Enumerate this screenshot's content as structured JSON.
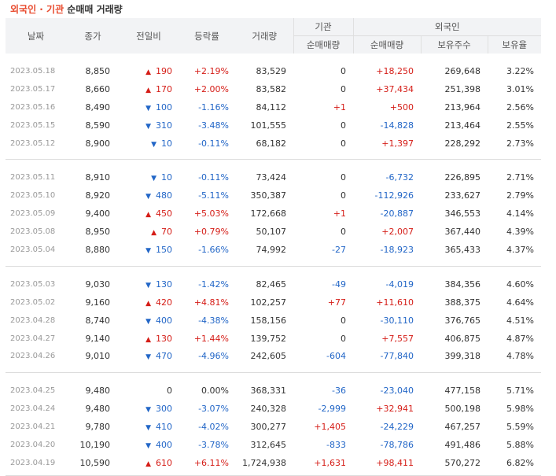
{
  "title": {
    "part1": "외국인 · 기관",
    "part2": " 순매매 거래량"
  },
  "headers": {
    "date": "날짜",
    "close": "종가",
    "change": "전일비",
    "rate": "등락률",
    "volume": "거래량",
    "inst": "기관",
    "foreign": "외국인",
    "inst_net": "순매매량",
    "foreign_net": "순매매량",
    "holdings": "보유주수",
    "ratio": "보유율"
  },
  "colors": {
    "up": "#d51d17",
    "down": "#2266c7",
    "title_accent": "#e8492c",
    "header_bg": "#f2f3f5"
  },
  "groups": [
    {
      "rows": [
        {
          "date": "2023.05.18",
          "close": "8,850",
          "dir": "up",
          "chg": "190",
          "rate": "+2.19%",
          "vol": "83,529",
          "inst": "0",
          "inst_dir": "zero",
          "fnet": "+18,250",
          "fdir": "up",
          "hold": "269,648",
          "ratio": "3.22%"
        },
        {
          "date": "2023.05.17",
          "close": "8,660",
          "dir": "up",
          "chg": "170",
          "rate": "+2.00%",
          "vol": "83,582",
          "inst": "0",
          "inst_dir": "zero",
          "fnet": "+37,434",
          "fdir": "up",
          "hold": "251,398",
          "ratio": "3.01%"
        },
        {
          "date": "2023.05.16",
          "close": "8,490",
          "dir": "down",
          "chg": "100",
          "rate": "-1.16%",
          "vol": "84,112",
          "inst": "+1",
          "inst_dir": "up",
          "fnet": "+500",
          "fdir": "up",
          "hold": "213,964",
          "ratio": "2.56%"
        },
        {
          "date": "2023.05.15",
          "close": "8,590",
          "dir": "down",
          "chg": "310",
          "rate": "-3.48%",
          "vol": "101,555",
          "inst": "0",
          "inst_dir": "zero",
          "fnet": "-14,828",
          "fdir": "down",
          "hold": "213,464",
          "ratio": "2.55%"
        },
        {
          "date": "2023.05.12",
          "close": "8,900",
          "dir": "down",
          "chg": "10",
          "rate": "-0.11%",
          "vol": "68,182",
          "inst": "0",
          "inst_dir": "zero",
          "fnet": "+1,397",
          "fdir": "up",
          "hold": "228,292",
          "ratio": "2.73%"
        }
      ]
    },
    {
      "rows": [
        {
          "date": "2023.05.11",
          "close": "8,910",
          "dir": "down",
          "chg": "10",
          "rate": "-0.11%",
          "vol": "73,424",
          "inst": "0",
          "inst_dir": "zero",
          "fnet": "-6,732",
          "fdir": "down",
          "hold": "226,895",
          "ratio": "2.71%"
        },
        {
          "date": "2023.05.10",
          "close": "8,920",
          "dir": "down",
          "chg": "480",
          "rate": "-5.11%",
          "vol": "350,387",
          "inst": "0",
          "inst_dir": "zero",
          "fnet": "-112,926",
          "fdir": "down",
          "hold": "233,627",
          "ratio": "2.79%"
        },
        {
          "date": "2023.05.09",
          "close": "9,400",
          "dir": "up",
          "chg": "450",
          "rate": "+5.03%",
          "vol": "172,668",
          "inst": "+1",
          "inst_dir": "up",
          "fnet": "-20,887",
          "fdir": "down",
          "hold": "346,553",
          "ratio": "4.14%"
        },
        {
          "date": "2023.05.08",
          "close": "8,950",
          "dir": "up",
          "chg": "70",
          "rate": "+0.79%",
          "vol": "50,107",
          "inst": "0",
          "inst_dir": "zero",
          "fnet": "+2,007",
          "fdir": "up",
          "hold": "367,440",
          "ratio": "4.39%"
        },
        {
          "date": "2023.05.04",
          "close": "8,880",
          "dir": "down",
          "chg": "150",
          "rate": "-1.66%",
          "vol": "74,992",
          "inst": "-27",
          "inst_dir": "down",
          "fnet": "-18,923",
          "fdir": "down",
          "hold": "365,433",
          "ratio": "4.37%"
        }
      ]
    },
    {
      "rows": [
        {
          "date": "2023.05.03",
          "close": "9,030",
          "dir": "down",
          "chg": "130",
          "rate": "-1.42%",
          "vol": "82,465",
          "inst": "-49",
          "inst_dir": "down",
          "fnet": "-4,019",
          "fdir": "down",
          "hold": "384,356",
          "ratio": "4.60%"
        },
        {
          "date": "2023.05.02",
          "close": "9,160",
          "dir": "up",
          "chg": "420",
          "rate": "+4.81%",
          "vol": "102,257",
          "inst": "+77",
          "inst_dir": "up",
          "fnet": "+11,610",
          "fdir": "up",
          "hold": "388,375",
          "ratio": "4.64%"
        },
        {
          "date": "2023.04.28",
          "close": "8,740",
          "dir": "down",
          "chg": "400",
          "rate": "-4.38%",
          "vol": "158,156",
          "inst": "0",
          "inst_dir": "zero",
          "fnet": "-30,110",
          "fdir": "down",
          "hold": "376,765",
          "ratio": "4.51%"
        },
        {
          "date": "2023.04.27",
          "close": "9,140",
          "dir": "up",
          "chg": "130",
          "rate": "+1.44%",
          "vol": "139,752",
          "inst": "0",
          "inst_dir": "zero",
          "fnet": "+7,557",
          "fdir": "up",
          "hold": "406,875",
          "ratio": "4.87%"
        },
        {
          "date": "2023.04.26",
          "close": "9,010",
          "dir": "down",
          "chg": "470",
          "rate": "-4.96%",
          "vol": "242,605",
          "inst": "-604",
          "inst_dir": "down",
          "fnet": "-77,840",
          "fdir": "down",
          "hold": "399,318",
          "ratio": "4.78%"
        }
      ]
    },
    {
      "rows": [
        {
          "date": "2023.04.25",
          "close": "9,480",
          "dir": "zero",
          "chg": "0",
          "rate": "0.00%",
          "vol": "368,331",
          "inst": "-36",
          "inst_dir": "down",
          "fnet": "-23,040",
          "fdir": "down",
          "hold": "477,158",
          "ratio": "5.71%"
        },
        {
          "date": "2023.04.24",
          "close": "9,480",
          "dir": "down",
          "chg": "300",
          "rate": "-3.07%",
          "vol": "240,328",
          "inst": "-2,999",
          "inst_dir": "down",
          "fnet": "+32,941",
          "fdir": "up",
          "hold": "500,198",
          "ratio": "5.98%"
        },
        {
          "date": "2023.04.21",
          "close": "9,780",
          "dir": "down",
          "chg": "410",
          "rate": "-4.02%",
          "vol": "300,277",
          "inst": "+1,405",
          "inst_dir": "up",
          "fnet": "-24,229",
          "fdir": "down",
          "hold": "467,257",
          "ratio": "5.59%"
        },
        {
          "date": "2023.04.20",
          "close": "10,190",
          "dir": "down",
          "chg": "400",
          "rate": "-3.78%",
          "vol": "312,645",
          "inst": "-833",
          "inst_dir": "down",
          "fnet": "-78,786",
          "fdir": "down",
          "hold": "491,486",
          "ratio": "5.88%"
        },
        {
          "date": "2023.04.19",
          "close": "10,590",
          "dir": "up",
          "chg": "610",
          "rate": "+6.11%",
          "vol": "1,724,938",
          "inst": "+1,631",
          "inst_dir": "up",
          "fnet": "+98,411",
          "fdir": "up",
          "hold": "570,272",
          "ratio": "6.82%"
        }
      ]
    }
  ]
}
